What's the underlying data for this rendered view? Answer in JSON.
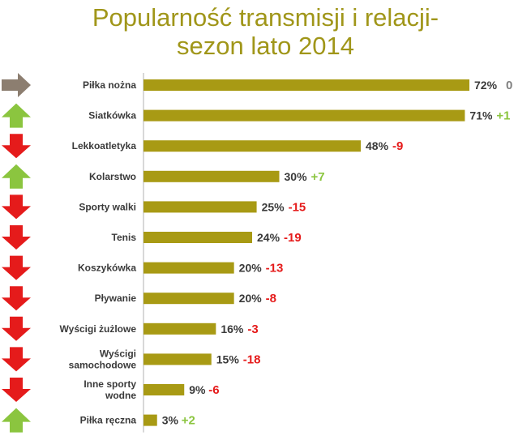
{
  "title_line1": "Popularność transmisji i relacji-",
  "title_line2": "sezon lato 2014",
  "colors": {
    "title": "#a09619",
    "bar": "#a89a14",
    "axis": "#b0b0b0",
    "up": "#8bc53f",
    "down": "#e51b1b",
    "neutral": "#8c7e70",
    "change_zero": "#808080"
  },
  "chart_data": {
    "type": "bar",
    "orientation": "horizontal",
    "title": "Popularność transmisji i relacji-sezon lato 2014",
    "xlim": [
      0,
      72
    ],
    "categories": [
      "Piłka nożna",
      "Siatkówka",
      "Lekkoatletyka",
      "Kolarstwo",
      "Sporty walki",
      "Tenis",
      "Koszykówka",
      "Pływanie",
      "Wyścigi żużlowe",
      "Wyścigi samochodowe",
      "Inne sporty wodne",
      "Piłka ręczna"
    ],
    "category_lines": [
      [
        "Piłka nożna"
      ],
      [
        "Siatkówka"
      ],
      [
        "Lekkoatletyka"
      ],
      [
        "Kolarstwo"
      ],
      [
        "Sporty walki"
      ],
      [
        "Tenis"
      ],
      [
        "Koszykówka"
      ],
      [
        "Pływanie"
      ],
      [
        "Wyścigi żużlowe"
      ],
      [
        "Wyścigi",
        "samochodowe"
      ],
      [
        "Inne sporty",
        "wodne"
      ],
      [
        "Piłka ręczna"
      ]
    ],
    "values": [
      72,
      71,
      48,
      30,
      25,
      24,
      20,
      20,
      16,
      15,
      9,
      3
    ],
    "value_labels": [
      "72%",
      "71%",
      "48%",
      "30%",
      "25%",
      "24%",
      "20%",
      "20%",
      "16%",
      "15%",
      "9%",
      "3%"
    ],
    "changes": [
      "0",
      "+1",
      "-9",
      "+7",
      "-15",
      "-19",
      "-13",
      "-8",
      "-3",
      "-18",
      "-6",
      "+2"
    ],
    "trend_icons": [
      "right-arrow-icon",
      "up-arrow-icon",
      "down-arrow-icon",
      "up-arrow-icon",
      "down-arrow-icon",
      "down-arrow-icon",
      "down-arrow-icon",
      "down-arrow-icon",
      "down-arrow-icon",
      "down-arrow-icon",
      "down-arrow-icon",
      "up-arrow-icon"
    ]
  }
}
